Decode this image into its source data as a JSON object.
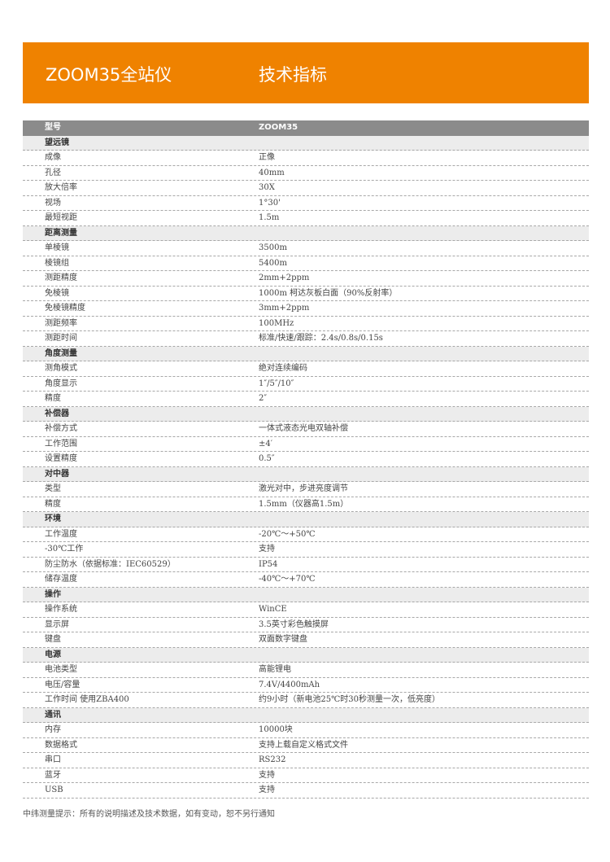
{
  "banner": {
    "title": "ZOOM35全站仪",
    "subtitle": "技术指标",
    "color": "#ef8200"
  },
  "table": {
    "header": {
      "label": "型号",
      "value": "ZOOM35"
    },
    "sections": [
      {
        "title": "望远镜",
        "rows": [
          [
            "成像",
            "正像"
          ],
          [
            "孔径",
            "40mm"
          ],
          [
            "放大倍率",
            "30X"
          ],
          [
            "视场",
            "1°30'"
          ],
          [
            "最短视距",
            "1.5m"
          ]
        ]
      },
      {
        "title": "距离测量",
        "rows": [
          [
            "单棱镜",
            "3500m"
          ],
          [
            "棱镜组",
            "5400m"
          ],
          [
            "测距精度",
            "2mm+2ppm"
          ],
          [
            "免棱镜",
            "1000m 柯达灰板白面（90%反射率）"
          ],
          [
            "免棱镜精度",
            "3mm+2ppm"
          ],
          [
            "测距频率",
            "100MHz"
          ],
          [
            "测距时间",
            "标准/快速/跟踪：2.4s/0.8s/0.15s"
          ]
        ]
      },
      {
        "title": "角度测量",
        "rows": [
          [
            "测角模式",
            "绝对连续编码"
          ],
          [
            "角度显示",
            "1″/5″/10″"
          ],
          [
            "精度",
            "2″"
          ]
        ]
      },
      {
        "title": "补偿器",
        "rows": [
          [
            "补偿方式",
            "一体式液态光电双轴补偿"
          ],
          [
            "工作范围",
            "±4′"
          ],
          [
            "设置精度",
            "0.5″"
          ]
        ]
      },
      {
        "title": "对中器",
        "rows": [
          [
            "类型",
            "激光对中，步进亮度调节"
          ],
          [
            "精度",
            "1.5mm（仪器高1.5m）"
          ]
        ]
      },
      {
        "title": "环境",
        "rows": [
          [
            "工作温度",
            "-20℃～+50℃"
          ],
          [
            "-30℃工作",
            "支持"
          ],
          [
            "防尘防水（依据标准：IEC60529）",
            "IP54"
          ],
          [
            "储存温度",
            "-40℃～+70℃"
          ]
        ]
      },
      {
        "title": "操作",
        "rows": [
          [
            "操作系统",
            "WinCE"
          ],
          [
            "显示屏",
            "3.5英寸彩色触摸屏"
          ],
          [
            "键盘",
            "双面数字键盘"
          ]
        ]
      },
      {
        "title": "电源",
        "rows": [
          [
            "电池类型",
            "高能锂电"
          ],
          [
            "电压/容量",
            "7.4V/4400mAh"
          ],
          [
            "工作时间 使用ZBA400",
            "约9小时（新电池25℃时30秒测量一次，低亮度）"
          ]
        ]
      },
      {
        "title": "通讯",
        "rows": [
          [
            "内存",
            "10000块"
          ],
          [
            "数据格式",
            "支持上载自定义格式文件"
          ],
          [
            "串口",
            "RS232"
          ],
          [
            "蓝牙",
            "支持"
          ],
          [
            "USB",
            "支持"
          ]
        ]
      }
    ]
  },
  "footer": "中纬测量提示：所有的说明描述及技术数据，如有变动，恕不另行通知"
}
